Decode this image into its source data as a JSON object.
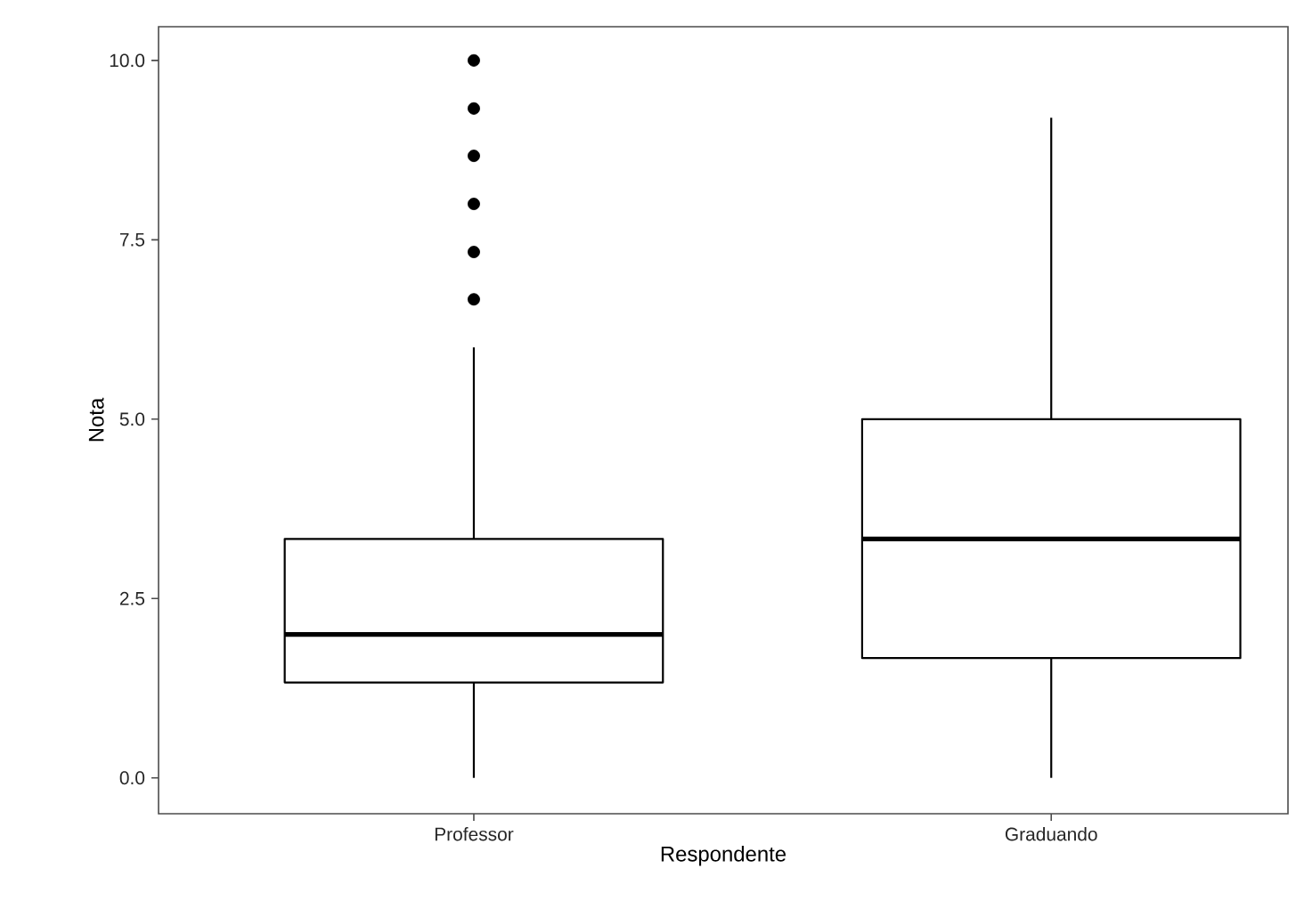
{
  "chart_data": {
    "type": "box",
    "xlabel": "Respondente",
    "ylabel": "Nota",
    "categories": [
      "Professor",
      "Graduando"
    ],
    "boxes": [
      {
        "low": 0,
        "q1": 1.33,
        "median": 2.0,
        "q3": 3.33,
        "high": 6.0,
        "outliers": [
          6.67,
          7.33,
          8.0,
          8.67,
          9.33,
          10.0
        ]
      },
      {
        "low": 0,
        "q1": 1.67,
        "median": 3.33,
        "q3": 5.0,
        "high": 9.2
      }
    ],
    "ylim": [
      -0.5,
      10.47
    ],
    "yticks": [
      {
        "value": 0,
        "label": "0.0"
      },
      {
        "value": 2.5,
        "label": "2.5"
      },
      {
        "value": 5,
        "label": "5.0"
      },
      {
        "value": 7.5,
        "label": "7.5"
      },
      {
        "value": 10,
        "label": "10.0"
      }
    ],
    "grid": false
  }
}
